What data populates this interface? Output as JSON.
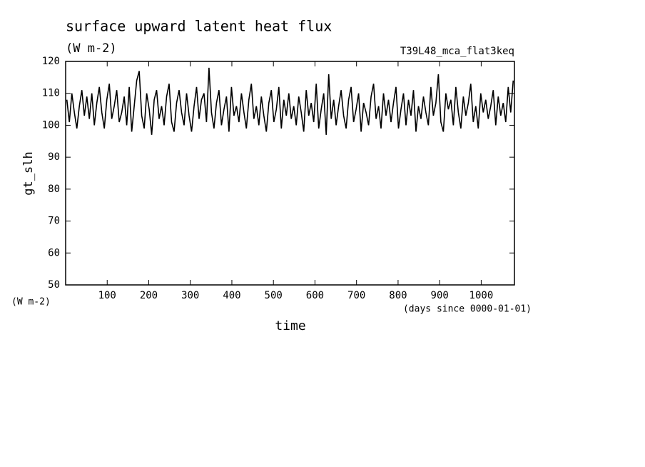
{
  "chart_data": {
    "type": "line",
    "title": "surface upward latent heat flux",
    "subtitle": "(W m-2)",
    "annotation": "T39L48_mca_flat3keq",
    "y_label": "gt_slh",
    "y_unit": "(W m-2)",
    "x_label": "time",
    "x_unit": "(days since 0000-01-01)",
    "color": "#000000",
    "xlim": [
      0,
      1080
    ],
    "xticks": [
      100,
      200,
      300,
      400,
      500,
      600,
      700,
      800,
      900,
      1000
    ],
    "ylim": [
      50,
      120
    ],
    "yticks": [
      50,
      60,
      70,
      80,
      90,
      100,
      110,
      120
    ],
    "x": [
      3,
      9,
      15,
      21,
      27,
      33,
      39,
      45,
      51,
      57,
      63,
      69,
      75,
      81,
      87,
      93,
      99,
      105,
      111,
      117,
      123,
      129,
      135,
      141,
      147,
      153,
      159,
      165,
      171,
      177,
      183,
      189,
      195,
      201,
      207,
      213,
      219,
      225,
      231,
      237,
      243,
      249,
      255,
      261,
      267,
      273,
      279,
      285,
      291,
      297,
      303,
      309,
      315,
      321,
      327,
      333,
      339,
      345,
      351,
      357,
      363,
      369,
      375,
      381,
      387,
      393,
      399,
      405,
      411,
      417,
      423,
      429,
      435,
      441,
      447,
      453,
      459,
      465,
      471,
      477,
      483,
      489,
      495,
      501,
      507,
      513,
      519,
      525,
      531,
      537,
      543,
      549,
      555,
      561,
      567,
      573,
      579,
      585,
      591,
      597,
      603,
      609,
      615,
      621,
      627,
      633,
      639,
      645,
      651,
      657,
      663,
      669,
      675,
      681,
      687,
      693,
      699,
      705,
      711,
      717,
      723,
      729,
      735,
      741,
      747,
      753,
      759,
      765,
      771,
      777,
      783,
      789,
      795,
      801,
      807,
      813,
      819,
      825,
      831,
      837,
      843,
      849,
      855,
      861,
      867,
      873,
      879,
      885,
      891,
      897,
      903,
      909,
      915,
      921,
      927,
      933,
      939,
      945,
      951,
      957,
      963,
      969,
      975,
      981,
      987,
      993,
      999,
      1005,
      1011,
      1017,
      1023,
      1029,
      1035,
      1041,
      1047,
      1053,
      1059,
      1065,
      1071,
      1077
    ],
    "values": [
      108,
      101,
      110,
      104,
      99,
      106,
      111,
      103,
      109,
      102,
      110,
      100,
      107,
      112,
      104,
      99,
      108,
      113,
      102,
      106,
      111,
      101,
      104,
      109,
      100,
      112,
      98,
      106,
      114,
      117,
      103,
      99,
      110,
      105,
      97,
      108,
      111,
      102,
      106,
      100,
      109,
      113,
      101,
      98,
      107,
      111,
      104,
      100,
      110,
      103,
      98,
      106,
      112,
      102,
      108,
      110,
      101,
      118,
      104,
      99,
      107,
      111,
      100,
      105,
      109,
      98,
      112,
      103,
      106,
      101,
      110,
      104,
      99,
      108,
      113,
      102,
      106,
      100,
      109,
      103,
      98,
      107,
      111,
      101,
      105,
      112,
      99,
      108,
      103,
      110,
      102,
      106,
      100,
      109,
      104,
      98,
      111,
      103,
      107,
      101,
      113,
      99,
      105,
      110,
      97,
      116,
      102,
      108,
      100,
      106,
      111,
      103,
      99,
      108,
      112,
      101,
      105,
      110,
      98,
      107,
      104,
      100,
      109,
      113,
      102,
      106,
      99,
      110,
      103,
      108,
      101,
      107,
      112,
      99,
      105,
      110,
      100,
      108,
      103,
      111,
      98,
      106,
      102,
      109,
      104,
      100,
      112,
      103,
      107,
      116,
      101,
      98,
      110,
      105,
      108,
      100,
      112,
      104,
      99,
      109,
      103,
      107,
      113,
      101,
      106,
      99,
      110,
      104,
      108,
      102,
      106,
      111,
      100,
      109,
      103,
      107,
      101,
      112,
      104,
      114
    ]
  }
}
